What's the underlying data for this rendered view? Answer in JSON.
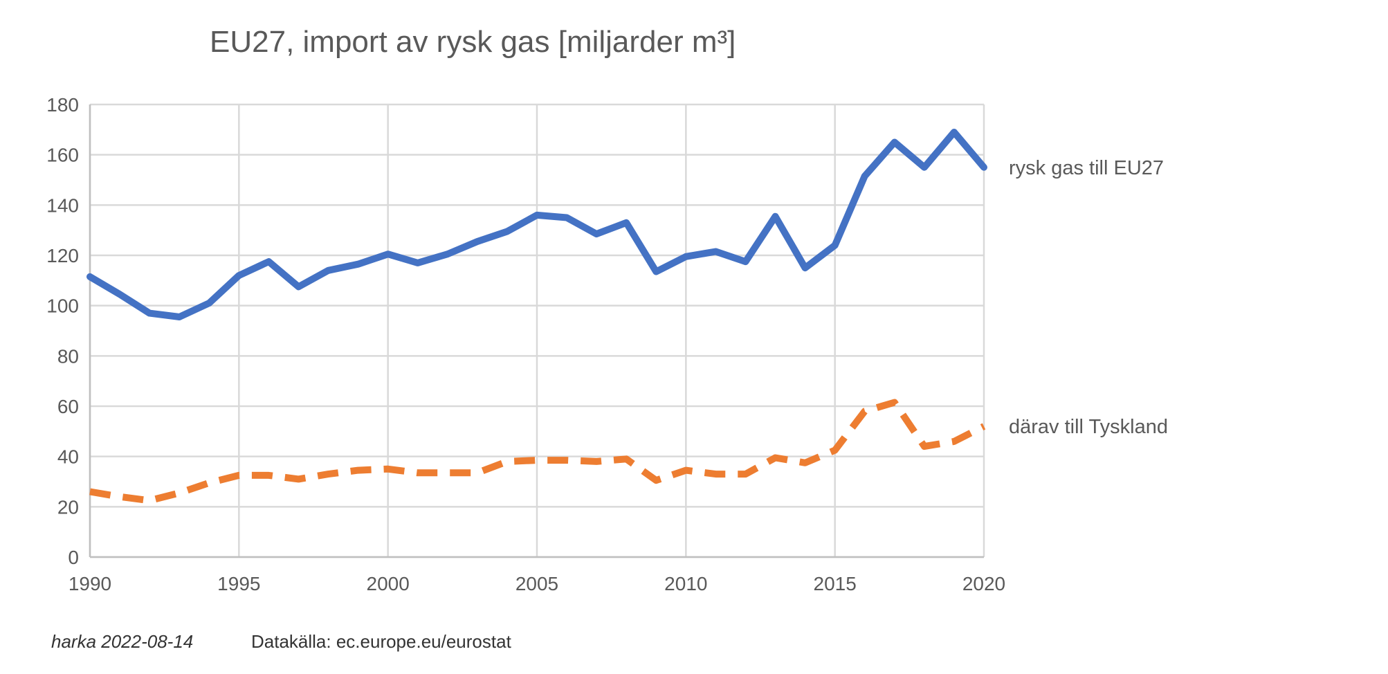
{
  "chart_data": {
    "type": "line",
    "title": "EU27, import av rysk gas [miljarder m³]",
    "xlim": [
      1990,
      2020
    ],
    "ylim": [
      0,
      180
    ],
    "x_ticks": [
      "1990",
      "1995",
      "2000",
      "2005",
      "2010",
      "2015",
      "2020"
    ],
    "y_ticks": [
      "0",
      "20",
      "40",
      "60",
      "80",
      "100",
      "120",
      "140",
      "160",
      "180"
    ],
    "grid": true,
    "x": [
      1990,
      1991,
      1992,
      1993,
      1994,
      1995,
      1996,
      1997,
      1998,
      1999,
      2000,
      2001,
      2002,
      2003,
      2004,
      2005,
      2006,
      2007,
      2008,
      2009,
      2010,
      2011,
      2012,
      2013,
      2014,
      2015,
      2016,
      2017,
      2018,
      2019,
      2020
    ],
    "series": [
      {
        "name": "rysk gas till EU27",
        "color": "#4472C4",
        "style": "solid",
        "values": [
          111.5,
          104.5,
          97,
          95.5,
          101,
          112,
          117.5,
          107.5,
          114,
          116.5,
          120.5,
          117,
          120.5,
          125.5,
          129.5,
          136,
          135,
          128.5,
          133,
          113.5,
          119.5,
          121.5,
          117.5,
          135.5,
          115,
          124,
          151.5,
          165,
          155,
          169,
          155
        ]
      },
      {
        "name": "därav till Tyskland",
        "color": "#ED7D31",
        "style": "dashed",
        "values": [
          26,
          24,
          22.5,
          25.5,
          29.5,
          32.5,
          32.5,
          31,
          33,
          34.5,
          35,
          33.5,
          33.5,
          33.5,
          38,
          38.5,
          38.5,
          38,
          39,
          30.5,
          34.5,
          33,
          33,
          39.5,
          37.5,
          42.5,
          58,
          61.5,
          44,
          46,
          52
        ]
      }
    ]
  },
  "footer": {
    "author": "harka 2022-08-14",
    "source": "Datakälla: ec.europe.eu/eurostat"
  }
}
